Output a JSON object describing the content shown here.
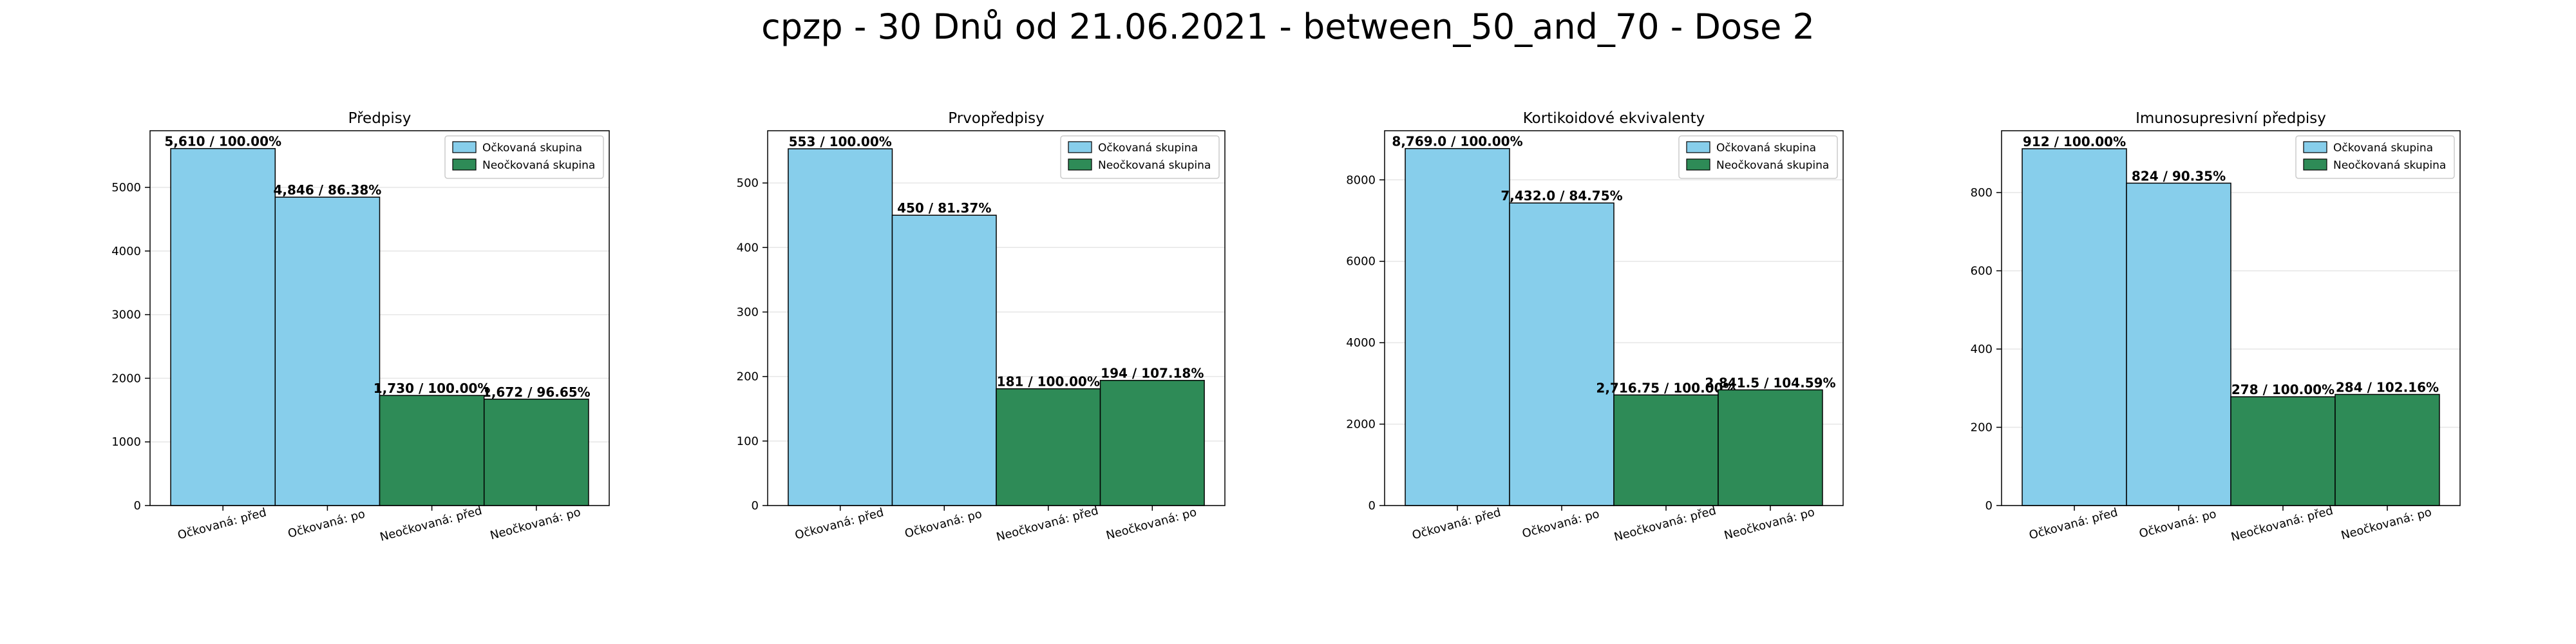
{
  "figure": {
    "suptitle": "cpzp - 30 Dnů od 21.06.2021 - between_50_and_70 - Dose 2"
  },
  "colors": {
    "vaccinated": "#87ceeb",
    "unvaccinated": "#2e8b57",
    "edge": "#000000",
    "grid": "#e6e6e6"
  },
  "legend": {
    "position": "top-right",
    "entries": [
      "Očkovaná skupina",
      "Neočkovaná skupina"
    ]
  },
  "chart_data": [
    {
      "type": "bar",
      "title": "Předpisy",
      "categories": [
        "Očkovaná: před",
        "Očkovaná: po",
        "Neočkovaná: před",
        "Neočkovaná: po"
      ],
      "values": [
        5610,
        4846,
        1730,
        1672
      ],
      "groups": [
        "vaccinated",
        "vaccinated",
        "unvaccinated",
        "unvaccinated"
      ],
      "labels": [
        "5,610 / 100.00%",
        "4,846 / 86.38%",
        "1,730 / 100.00%",
        "1,672 / 96.65%"
      ],
      "ylim": [
        0,
        5890
      ],
      "yticks": [
        0,
        1000,
        2000,
        3000,
        4000,
        5000
      ],
      "grid": true
    },
    {
      "type": "bar",
      "title": "Prvopředpisy",
      "categories": [
        "Očkovaná: před",
        "Očkovaná: po",
        "Neočkovaná: před",
        "Neočkovaná: po"
      ],
      "values": [
        553,
        450,
        181,
        194
      ],
      "groups": [
        "vaccinated",
        "vaccinated",
        "unvaccinated",
        "unvaccinated"
      ],
      "labels": [
        "553 / 100.00%",
        "450 / 81.37%",
        "181 / 100.00%",
        "194 / 107.18%"
      ],
      "ylim": [
        0,
        581
      ],
      "yticks": [
        0,
        100,
        200,
        300,
        400,
        500
      ],
      "grid": true
    },
    {
      "type": "bar",
      "title": "Kortikoidové ekvivalenty",
      "categories": [
        "Očkovaná: před",
        "Očkovaná: po",
        "Neočkovaná: před",
        "Neočkovaná: po"
      ],
      "values": [
        8769.0,
        7432.0,
        2716.75,
        2841.5
      ],
      "groups": [
        "vaccinated",
        "vaccinated",
        "unvaccinated",
        "unvaccinated"
      ],
      "labels": [
        "8,769.0 / 100.00%",
        "7,432.0 / 84.75%",
        "2,716.75 / 100.00%",
        "2,841.5 / 104.59%"
      ],
      "ylim": [
        0,
        9207
      ],
      "yticks": [
        0,
        2000,
        4000,
        6000,
        8000
      ],
      "grid": true
    },
    {
      "type": "bar",
      "title": "Imunosupresivní předpisy",
      "categories": [
        "Očkovaná: před",
        "Očkovaná: po",
        "Neočkovaná: před",
        "Neočkovaná: po"
      ],
      "values": [
        912,
        824,
        278,
        284
      ],
      "groups": [
        "vaccinated",
        "vaccinated",
        "unvaccinated",
        "unvaccinated"
      ],
      "labels": [
        "912 / 100.00%",
        "824 / 90.35%",
        "278 / 100.00%",
        "284 / 102.16%"
      ],
      "ylim": [
        0,
        958
      ],
      "yticks": [
        0,
        200,
        400,
        600,
        800
      ],
      "grid": true
    }
  ]
}
